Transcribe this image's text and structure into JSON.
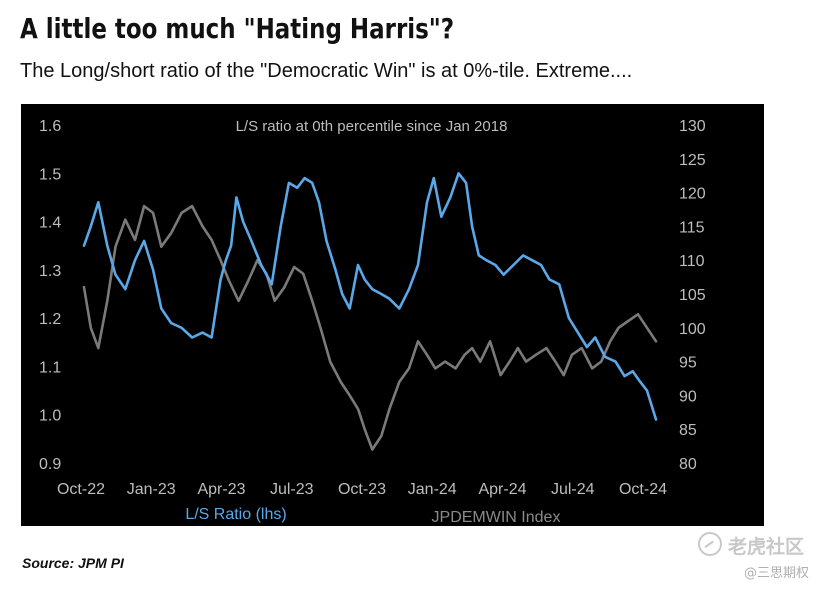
{
  "title": "A little too much \"Hating Harris\"?",
  "subtitle": "The Long/short ratio of the \"Democratic Win\" is at 0%-tile. Extreme....",
  "source": "Source: JPM PI",
  "watermark": {
    "brand": "老虎社区",
    "handle": "@三思期权"
  },
  "colors": {
    "background": "#000000",
    "ls_ratio": "#5ba8e8",
    "jpdemwin": "#7a7a7a",
    "axis_text": "#bdbdbd"
  },
  "chart_data": {
    "type": "line",
    "annotation": "L/S ratio at 0th percentile since Jan 2018",
    "x_tick_labels": [
      "Oct-22",
      "Jan-23",
      "Apr-23",
      "Jul-23",
      "Oct-23",
      "Jan-24",
      "Apr-24",
      "Jul-24",
      "Oct-24"
    ],
    "x_range": [
      "2022-10-01",
      "2024-11-05"
    ],
    "y_left": {
      "ylim": [
        0.9,
        1.6
      ],
      "ticks": [
        "0.9",
        "1.0",
        "1.1",
        "1.2",
        "1.3",
        "1.4",
        "1.5",
        "1.6"
      ]
    },
    "y_right": {
      "ylim": [
        80,
        130
      ],
      "ticks": [
        "80",
        "85",
        "90",
        "95",
        "100",
        "105",
        "110",
        "115",
        "120",
        "125",
        "130"
      ]
    },
    "grid": false,
    "legend": [
      {
        "label": "L/S Ratio (lhs)",
        "color": "#5ba8e8"
      },
      {
        "label": "JPDEMWIN Index",
        "color": "#7a7a7a"
      }
    ],
    "series": [
      {
        "name": "L/S Ratio (lhs)",
        "axis": "left",
        "x": [
          "2022-10-01",
          "2022-10-10",
          "2022-10-20",
          "2022-11-01",
          "2022-11-12",
          "2022-11-25",
          "2022-12-08",
          "2022-12-20",
          "2023-01-01",
          "2023-01-12",
          "2023-01-25",
          "2023-02-08",
          "2023-02-22",
          "2023-03-08",
          "2023-03-20",
          "2023-04-01",
          "2023-04-08",
          "2023-04-15",
          "2023-04-22",
          "2023-05-01",
          "2023-05-12",
          "2023-05-25",
          "2023-06-08",
          "2023-06-20",
          "2023-07-01",
          "2023-07-12",
          "2023-07-22",
          "2023-08-01",
          "2023-08-10",
          "2023-08-20",
          "2023-09-01",
          "2023-09-10",
          "2023-09-20",
          "2023-10-01",
          "2023-10-10",
          "2023-10-20",
          "2023-11-01",
          "2023-11-12",
          "2023-11-25",
          "2023-12-08",
          "2023-12-20",
          "2024-01-01",
          "2024-01-10",
          "2024-01-20",
          "2024-02-01",
          "2024-02-12",
          "2024-02-22",
          "2024-03-01",
          "2024-03-10",
          "2024-03-20",
          "2024-04-01",
          "2024-04-12",
          "2024-04-25",
          "2024-05-08",
          "2024-05-20",
          "2024-06-01",
          "2024-06-12",
          "2024-06-25",
          "2024-07-08",
          "2024-07-20",
          "2024-08-01",
          "2024-08-12",
          "2024-08-25",
          "2024-09-08",
          "2024-09-20",
          "2024-10-01",
          "2024-10-10",
          "2024-10-20",
          "2024-11-01"
        ],
        "values": [
          1.35,
          1.39,
          1.44,
          1.35,
          1.29,
          1.26,
          1.32,
          1.36,
          1.3,
          1.22,
          1.19,
          1.18,
          1.16,
          1.17,
          1.16,
          1.28,
          1.32,
          1.35,
          1.45,
          1.4,
          1.36,
          1.31,
          1.27,
          1.39,
          1.48,
          1.47,
          1.49,
          1.48,
          1.44,
          1.36,
          1.3,
          1.25,
          1.22,
          1.31,
          1.28,
          1.26,
          1.25,
          1.24,
          1.22,
          1.26,
          1.31,
          1.44,
          1.49,
          1.41,
          1.45,
          1.5,
          1.48,
          1.39,
          1.33,
          1.32,
          1.31,
          1.29,
          1.31,
          1.33,
          1.32,
          1.31,
          1.28,
          1.27,
          1.2,
          1.17,
          1.14,
          1.16,
          1.12,
          1.11,
          1.08,
          1.09,
          1.07,
          1.05,
          0.99
        ]
      },
      {
        "name": "JPDEMWIN Index",
        "axis": "right",
        "x": [
          "2022-10-01",
          "2022-10-10",
          "2022-10-20",
          "2022-11-01",
          "2022-11-12",
          "2022-11-25",
          "2022-12-08",
          "2022-12-20",
          "2023-01-01",
          "2023-01-12",
          "2023-01-25",
          "2023-02-08",
          "2023-02-22",
          "2023-03-08",
          "2023-03-20",
          "2023-04-01",
          "2023-04-12",
          "2023-04-25",
          "2023-05-08",
          "2023-05-20",
          "2023-06-01",
          "2023-06-12",
          "2023-06-25",
          "2023-07-08",
          "2023-07-20",
          "2023-08-01",
          "2023-08-12",
          "2023-08-25",
          "2023-09-08",
          "2023-09-20",
          "2023-10-01",
          "2023-10-10",
          "2023-10-20",
          "2023-11-01",
          "2023-11-12",
          "2023-11-25",
          "2023-12-08",
          "2023-12-20",
          "2024-01-01",
          "2024-01-12",
          "2024-01-25",
          "2024-02-08",
          "2024-02-20",
          "2024-03-01",
          "2024-03-12",
          "2024-03-25",
          "2024-04-08",
          "2024-04-20",
          "2024-05-01",
          "2024-05-12",
          "2024-05-25",
          "2024-06-08",
          "2024-06-20",
          "2024-07-01",
          "2024-07-12",
          "2024-07-25",
          "2024-08-08",
          "2024-08-20",
          "2024-09-01",
          "2024-09-12",
          "2024-09-25",
          "2024-10-08",
          "2024-10-20",
          "2024-11-01"
        ],
        "values": [
          106,
          100,
          97,
          104,
          112,
          116,
          113,
          118,
          117,
          112,
          114,
          117,
          118,
          115,
          113,
          110,
          107,
          104,
          107,
          110,
          108,
          104,
          106,
          109,
          108,
          104,
          100,
          95,
          92,
          90,
          88,
          85,
          82,
          84,
          88,
          92,
          94,
          98,
          96,
          94,
          95,
          94,
          96,
          97,
          95,
          98,
          93,
          95,
          97,
          95,
          96,
          97,
          95,
          93,
          96,
          97,
          94,
          95,
          98,
          100,
          101,
          102,
          100,
          98
        ]
      }
    ]
  }
}
